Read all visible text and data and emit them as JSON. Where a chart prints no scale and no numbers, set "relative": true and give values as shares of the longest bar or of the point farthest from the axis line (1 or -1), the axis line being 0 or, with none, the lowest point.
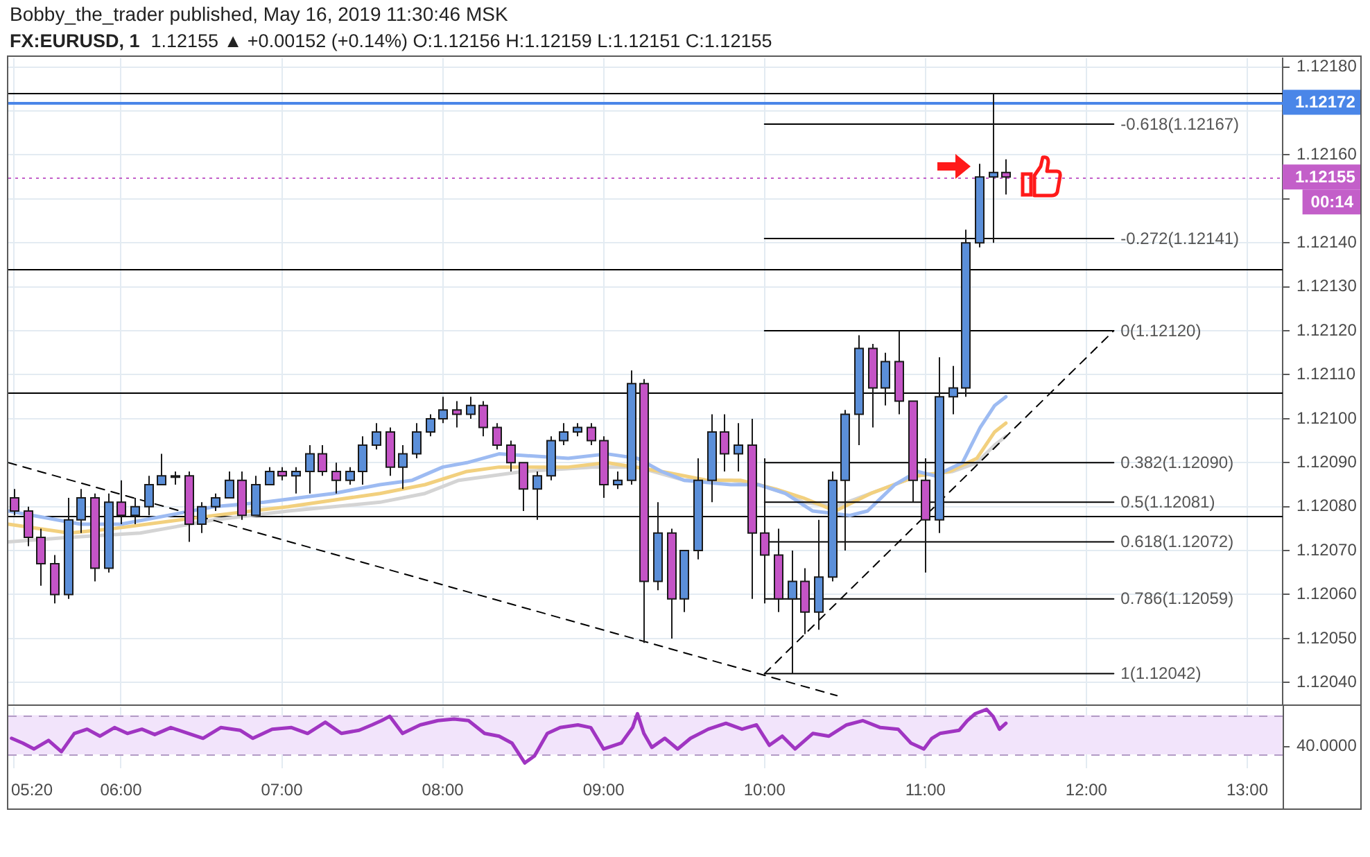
{
  "chart_data": [
    {
      "type": "candlestick",
      "title": "FX:EURUSD, 1",
      "subtitle": "1.12155 ▲ +0.00152 (+0.14%) O:1.12156 H:1.12159 L:1.12151 C:1.12155",
      "annotations": [
        "Bobby_the_trader published, May 16, 2019 11:30:46 MSK",
        "00:14"
      ],
      "x": [
        5.3333,
        5.4167,
        5.5,
        5.5833,
        5.6667,
        5.75,
        5.8333,
        5.9167,
        6,
        6.0833,
        6.1667,
        6.25,
        6.3333,
        6.4167,
        6.5,
        6.5833,
        6.6667,
        6.75,
        6.8333,
        6.9167,
        7,
        7.0833,
        7.1667,
        7.25,
        7.3333,
        7.4167,
        7.5,
        7.5833,
        7.6667,
        7.75,
        7.8333,
        7.9167,
        8,
        8.0833,
        8.1667,
        8.25,
        8.3333,
        8.4167,
        8.5,
        8.5833,
        8.6667,
        8.75,
        8.8333,
        8.9167,
        9,
        9.0833,
        9.1667,
        9.25,
        9.3333,
        9.4167,
        9.5,
        9.5833,
        9.6667,
        9.75,
        9.8333,
        9.9167,
        10,
        10.0833,
        10.1667,
        10.25,
        10.3333,
        10.4167,
        10.5,
        10.5833,
        10.6667,
        10.75,
        10.8333,
        10.9167,
        11,
        11.0833,
        11.1667,
        11.25,
        11.3333,
        11.4167,
        11.5
      ],
      "ohlc": [
        [
          1.12082,
          1.12084,
          1.12078,
          1.12079
        ],
        [
          1.12079,
          1.1208,
          1.12071,
          1.12073
        ],
        [
          1.12073,
          1.12075,
          1.12062,
          1.12067
        ],
        [
          1.12067,
          1.12069,
          1.12058,
          1.1206
        ],
        [
          1.1206,
          1.12082,
          1.12059,
          1.12077
        ],
        [
          1.12077,
          1.12084,
          1.12074,
          1.12082
        ],
        [
          1.12082,
          1.12083,
          1.12063,
          1.12066
        ],
        [
          1.12066,
          1.12083,
          1.12065,
          1.12081
        ],
        [
          1.12081,
          1.12086,
          1.12076,
          1.12078
        ],
        [
          1.12078,
          1.12082,
          1.12076,
          1.1208
        ],
        [
          1.1208,
          1.12087,
          1.12078,
          1.12085
        ],
        [
          1.12085,
          1.12092,
          1.12085,
          1.12087
        ],
        [
          1.12087,
          1.12088,
          1.12085,
          1.12087
        ],
        [
          1.12087,
          1.12088,
          1.12072,
          1.12076
        ],
        [
          1.12076,
          1.12081,
          1.12074,
          1.1208
        ],
        [
          1.1208,
          1.12083,
          1.12079,
          1.12082
        ],
        [
          1.12082,
          1.12088,
          1.12082,
          1.12086
        ],
        [
          1.12086,
          1.12088,
          1.12077,
          1.12078
        ],
        [
          1.12078,
          1.12087,
          1.12078,
          1.12085
        ],
        [
          1.12085,
          1.12089,
          1.12085,
          1.12088
        ],
        [
          1.12088,
          1.12089,
          1.12086,
          1.12087
        ],
        [
          1.12087,
          1.12089,
          1.12083,
          1.12088
        ],
        [
          1.12088,
          1.12094,
          1.12083,
          1.12092
        ],
        [
          1.12092,
          1.12094,
          1.12087,
          1.12088
        ],
        [
          1.12088,
          1.1209,
          1.12083,
          1.12086
        ],
        [
          1.12086,
          1.12089,
          1.12085,
          1.12088
        ],
        [
          1.12088,
          1.12096,
          1.12085,
          1.12094
        ],
        [
          1.12094,
          1.12099,
          1.12093,
          1.12097
        ],
        [
          1.12097,
          1.12098,
          1.12087,
          1.12089
        ],
        [
          1.12089,
          1.12094,
          1.12084,
          1.12092
        ],
        [
          1.12092,
          1.12099,
          1.12091,
          1.12097
        ],
        [
          1.12097,
          1.12101,
          1.12096,
          1.121
        ],
        [
          1.121,
          1.12105,
          1.12099,
          1.12102
        ],
        [
          1.12102,
          1.12104,
          1.12098,
          1.12101
        ],
        [
          1.12101,
          1.12105,
          1.121,
          1.12103
        ],
        [
          1.12103,
          1.12104,
          1.12096,
          1.12098
        ],
        [
          1.12098,
          1.12099,
          1.12093,
          1.12094
        ],
        [
          1.12094,
          1.12095,
          1.12088,
          1.1209
        ],
        [
          1.1209,
          1.1209,
          1.12079,
          1.12084
        ],
        [
          1.12084,
          1.12088,
          1.12077,
          1.12087
        ],
        [
          1.12087,
          1.12096,
          1.12086,
          1.12095
        ],
        [
          1.12095,
          1.12099,
          1.12094,
          1.12097
        ],
        [
          1.12097,
          1.12099,
          1.12096,
          1.12098
        ],
        [
          1.12098,
          1.12099,
          1.12094,
          1.12095
        ],
        [
          1.12095,
          1.12096,
          1.12082,
          1.12085
        ],
        [
          1.12085,
          1.12088,
          1.12084,
          1.12086
        ],
        [
          1.12086,
          1.12111,
          1.12085,
          1.12108
        ],
        [
          1.12108,
          1.12109,
          1.12049,
          1.12063
        ],
        [
          1.12063,
          1.12081,
          1.12061,
          1.12074
        ],
        [
          1.12074,
          1.12075,
          1.1205,
          1.12059
        ],
        [
          1.12059,
          1.1207,
          1.12056,
          1.1207
        ],
        [
          1.1207,
          1.12091,
          1.12068,
          1.12086
        ],
        [
          1.12086,
          1.12101,
          1.12081,
          1.12097
        ],
        [
          1.12097,
          1.12101,
          1.12088,
          1.12092
        ],
        [
          1.12092,
          1.12099,
          1.12088,
          1.12094
        ],
        [
          1.12094,
          1.121,
          1.12059,
          1.12074
        ],
        [
          1.12074,
          1.12091,
          1.12058,
          1.12069
        ],
        [
          1.12069,
          1.12075,
          1.12056,
          1.12059
        ],
        [
          1.12059,
          1.1207,
          1.12042,
          1.12063
        ],
        [
          1.12063,
          1.12066,
          1.12051,
          1.12056
        ],
        [
          1.12056,
          1.12077,
          1.12052,
          1.12064
        ],
        [
          1.12064,
          1.12088,
          1.12063,
          1.12086
        ],
        [
          1.12086,
          1.12102,
          1.1207,
          1.12101
        ],
        [
          1.12101,
          1.12119,
          1.12094,
          1.12116
        ],
        [
          1.12116,
          1.12117,
          1.12098,
          1.12107
        ],
        [
          1.12107,
          1.12115,
          1.12103,
          1.12113
        ],
        [
          1.12113,
          1.1212,
          1.12101,
          1.12104
        ],
        [
          1.12104,
          1.12104,
          1.12081,
          1.12086
        ],
        [
          1.12086,
          1.12091,
          1.12065,
          1.12077
        ],
        [
          1.12077,
          1.12114,
          1.12074,
          1.12105
        ],
        [
          1.12105,
          1.12112,
          1.12101,
          1.12107
        ],
        [
          1.12107,
          1.12143,
          1.12105,
          1.1214
        ],
        [
          1.1214,
          1.12158,
          1.12139,
          1.12155
        ],
        [
          1.12155,
          1.12174,
          1.1214,
          1.12156
        ],
        [
          1.12156,
          1.12159,
          1.12151,
          1.12155
        ]
      ],
      "colors": [
        "#c454c6",
        "#c454c6",
        "#c454c6",
        "#c454c6",
        "#5b8fd9",
        "#5b8fd9",
        "#c454c6",
        "#5b8fd9",
        "#c454c6",
        "#5b8fd9",
        "#5b8fd9",
        "#5b8fd9",
        "#5b8fd9",
        "#c454c6",
        "#5b8fd9",
        "#5b8fd9",
        "#5b8fd9",
        "#c454c6",
        "#5b8fd9",
        "#5b8fd9",
        "#c454c6",
        "#5b8fd9",
        "#5b8fd9",
        "#c454c6",
        "#c454c6",
        "#5b8fd9",
        "#5b8fd9",
        "#5b8fd9",
        "#c454c6",
        "#5b8fd9",
        "#5b8fd9",
        "#5b8fd9",
        "#5b8fd9",
        "#c454c6",
        "#5b8fd9",
        "#c454c6",
        "#c454c6",
        "#c454c6",
        "#c454c6",
        "#5b8fd9",
        "#5b8fd9",
        "#5b8fd9",
        "#5b8fd9",
        "#c454c6",
        "#c454c6",
        "#5b8fd9",
        "#5b8fd9",
        "#c454c6",
        "#5b8fd9",
        "#c454c6",
        "#5b8fd9",
        "#5b8fd9",
        "#5b8fd9",
        "#c454c6",
        "#5b8fd9",
        "#c454c6",
        "#c454c6",
        "#c454c6",
        "#5b8fd9",
        "#c454c6",
        "#5b8fd9",
        "#5b8fd9",
        "#5b8fd9",
        "#5b8fd9",
        "#c454c6",
        "#5b8fd9",
        "#c454c6",
        "#c454c6",
        "#c454c6",
        "#5b8fd9",
        "#5b8fd9",
        "#5b8fd9",
        "#5b8fd9",
        "#5b8fd9",
        "#c454c6"
      ],
      "series": [
        {
          "type": "line",
          "color": "#d4d4d4",
          "x": [
            5.3,
            5.68,
            6.12,
            6.58,
            7.04,
            7.61,
            7.89,
            8.1,
            8.5,
            8.93,
            9.21,
            9.5,
            9.79,
            9.96,
            10.13,
            10.24,
            10.44,
            10.66,
            10.95,
            11.17,
            11.32,
            11.43,
            11.5
          ],
          "values": [
            1.12072,
            1.12073,
            1.12074,
            1.12077,
            1.12079,
            1.12081,
            1.12083,
            1.12086,
            1.12088,
            1.12089,
            1.12089,
            1.12086,
            1.12086,
            1.12085,
            1.12083,
            1.12081,
            1.1208,
            1.12083,
            1.12087,
            1.12088,
            1.1209,
            1.12094,
            1.12096
          ]
        },
        {
          "type": "line",
          "color": "#f2d07e",
          "x": [
            5.3,
            5.68,
            5.95,
            6.58,
            7.04,
            7.61,
            7.89,
            8.15,
            8.35,
            8.78,
            9.02,
            9.36,
            9.64,
            9.85,
            9.96,
            10.07,
            10.24,
            10.44,
            10.66,
            10.95,
            11.15,
            11.32,
            11.43,
            11.5
          ],
          "values": [
            1.12076,
            1.12074,
            1.12075,
            1.12078,
            1.1208,
            1.12083,
            1.12085,
            1.12088,
            1.12089,
            1.12089,
            1.1209,
            1.12088,
            1.12086,
            1.12086,
            1.12085,
            1.12084,
            1.12082,
            1.12079,
            1.12083,
            1.12087,
            1.12088,
            1.12091,
            1.12097,
            1.12099
          ]
        },
        {
          "type": "line",
          "color": "#9dbbf2",
          "x": [
            5.3,
            5.75,
            6,
            6.58,
            6.89,
            7.32,
            7.61,
            7.81,
            8,
            8.15,
            8.35,
            8.78,
            9.02,
            9.21,
            9.36,
            9.5,
            9.79,
            9.96,
            10.13,
            10.3,
            10.53,
            10.64,
            10.81,
            10.95,
            11.06,
            11.23,
            11.34,
            11.43,
            11.5
          ],
          "values": [
            1.12079,
            1.12076,
            1.12076,
            1.1208,
            1.12081,
            1.12083,
            1.12085,
            1.12086,
            1.12089,
            1.1209,
            1.12092,
            1.12091,
            1.12092,
            1.12091,
            1.12088,
            1.12086,
            1.12085,
            1.12085,
            1.12083,
            1.12079,
            1.12078,
            1.12079,
            1.12085,
            1.12088,
            1.12087,
            1.1209,
            1.12098,
            1.12103,
            1.12105
          ]
        },
        {
          "type": "line",
          "name": "-0.618(1.12167)",
          "color": "#000000",
          "x": [
            10,
            12.17
          ],
          "values": [
            1.12167,
            1.12167
          ]
        },
        {
          "type": "line",
          "name": "-0.272(1.12141)",
          "color": "#000000",
          "x": [
            10,
            12.17
          ],
          "values": [
            1.12141,
            1.12141
          ]
        },
        {
          "type": "line",
          "name": "0(1.12120)",
          "color": "#000000",
          "x": [
            10,
            12.17
          ],
          "values": [
            1.1212,
            1.1212
          ]
        },
        {
          "type": "line",
          "name": "0.382(1.12090)",
          "color": "#000000",
          "x": [
            10,
            12.17
          ],
          "values": [
            1.1209,
            1.1209
          ]
        },
        {
          "type": "line",
          "name": "0.5(1.12081)",
          "color": "#000000",
          "x": [
            10,
            12.17
          ],
          "values": [
            1.12081,
            1.12081
          ]
        },
        {
          "type": "line",
          "name": "0.618(1.12072)",
          "color": "#000000",
          "x": [
            10,
            12.17
          ],
          "values": [
            1.12072,
            1.12072
          ]
        },
        {
          "type": "line",
          "name": "0.786(1.12059)",
          "color": "#000000",
          "x": [
            10,
            12.17
          ],
          "values": [
            1.12059,
            1.12059
          ]
        },
        {
          "type": "line",
          "name": "1(1.12042)",
          "color": "#000000",
          "x": [
            10,
            12.17
          ],
          "values": [
            1.12042,
            1.12042
          ]
        },
        {
          "type": "line",
          "color": "#000000",
          "line_style": "dashed",
          "x": [
            5.3,
            10.45
          ],
          "values": [
            1.1209,
            1.12037
          ]
        },
        {
          "type": "line",
          "color": "#000000",
          "line_style": "dashed",
          "x": [
            10,
            12.17
          ],
          "values": [
            1.12042,
            1.1212
          ]
        }
      ],
      "xlim": [
        5.3,
        13.22
      ],
      "xticks": [
        5.3333,
        6,
        7,
        8,
        9,
        10,
        11,
        12,
        13
      ],
      "ylim": [
        1.12035,
        1.12182
      ],
      "yticks": [
        {
          "value": 1.1204,
          "label": "1.12040"
        },
        {
          "value": 1.1205,
          "label": "1.12050"
        },
        {
          "value": 1.1206,
          "label": "1.12060"
        },
        {
          "value": 1.1207,
          "label": "1.12070"
        },
        {
          "value": 1.1208,
          "label": "1.12080"
        },
        {
          "value": 1.1209,
          "label": "1.12090"
        },
        {
          "value": 1.121,
          "label": "1.12100"
        },
        {
          "value": 1.1211,
          "label": "1.12110"
        },
        {
          "value": 1.1212,
          "label": "1.12120"
        },
        {
          "value": 1.1213,
          "label": "1.12130"
        },
        {
          "value": 1.1214,
          "label": "1.12140"
        },
        {
          "value": 1.1215,
          "label": null
        },
        {
          "value": 1.1216,
          "label": "1.12160"
        },
        {
          "value": 1.1217,
          "label": null
        },
        {
          "value": 1.1218,
          "label": "1.12180"
        }
      ],
      "ref_lines": [
        {
          "axis": "y",
          "value": 1.12174,
          "color": "#000000"
        },
        {
          "axis": "y",
          "value": 1.12172,
          "label": "1.12172",
          "color": "#4a86e8"
        },
        {
          "axis": "y",
          "value": 1.12155,
          "label": "1.12155",
          "color": "#c35fc9",
          "line_style": "dotted"
        },
        {
          "axis": "y",
          "value": 1.12134,
          "color": "#000000"
        },
        {
          "axis": "y",
          "value": 1.12106,
          "color": "#000000"
        },
        {
          "axis": "y",
          "value": 1.12078,
          "color": "#000000"
        }
      ],
      "grid": true,
      "tick_labels": "y"
    },
    {
      "type": "line",
      "relative": true,
      "x": [
        5.32,
        5.39,
        5.46,
        5.55,
        5.63,
        5.71,
        5.79,
        5.87,
        5.96,
        6.04,
        6.13,
        6.21,
        6.31,
        6.42,
        6.51,
        6.62,
        6.74,
        6.82,
        6.94,
        7.06,
        7.16,
        7.27,
        7.37,
        7.48,
        7.56,
        7.62,
        7.67,
        7.75,
        7.86,
        7.97,
        8.07,
        8.16,
        8.26,
        8.35,
        8.43,
        8.51,
        8.57,
        8.65,
        8.73,
        8.84,
        8.92,
        9,
        9.11,
        9.18,
        9.21,
        9.25,
        9.3,
        9.38,
        9.46,
        9.54,
        9.65,
        9.76,
        9.86,
        9.95,
        10.03,
        10.11,
        10.19,
        10.3,
        10.4,
        10.51,
        10.61,
        10.72,
        10.83,
        10.91,
        10.99,
        11.04,
        11.09,
        11.21,
        11.26,
        11.31,
        11.38,
        11.42,
        11.46,
        11.5
      ],
      "values": [
        0.46,
        0.37,
        0.26,
        0.42,
        0.21,
        0.55,
        0.63,
        0.5,
        0.66,
        0.55,
        0.63,
        0.53,
        0.66,
        0.55,
        0.46,
        0.66,
        0.61,
        0.46,
        0.63,
        0.66,
        0.55,
        0.76,
        0.55,
        0.61,
        0.71,
        0.79,
        0.87,
        0.55,
        0.71,
        0.79,
        0.82,
        0.79,
        0.55,
        0.5,
        0.37,
        0,
        0.13,
        0.55,
        0.66,
        0.71,
        0.66,
        0.26,
        0.37,
        0.66,
        0.92,
        0.55,
        0.29,
        0.46,
        0.26,
        0.46,
        0.63,
        0.74,
        0.63,
        0.71,
        0.33,
        0.5,
        0.26,
        0.55,
        0.5,
        0.71,
        0.79,
        0.66,
        0.63,
        0.37,
        0.26,
        0.46,
        0.55,
        0.61,
        0.79,
        0.92,
        1,
        0.87,
        0.63,
        0.74
      ],
      "color": "#a035c2",
      "bands": [
        {
          "axis": "y",
          "from": 0.16,
          "to": 0.89,
          "color": "#f2e4fb"
        }
      ],
      "ref_lines": [
        {
          "axis": "y",
          "value": 0.89,
          "color": "#b39bc5",
          "line_style": "dashed"
        },
        {
          "axis": "y",
          "value": 0.16,
          "color": "#b39bc5",
          "line_style": "dashed"
        }
      ],
      "annotations": [
        "40.0000"
      ],
      "xlim": [
        5.3,
        13.22
      ],
      "xticks": [
        {
          "value": 5.3333,
          "label": "05:20"
        },
        {
          "value": 6,
          "label": "06:00"
        },
        {
          "value": 7,
          "label": "07:00"
        },
        {
          "value": 8,
          "label": "08:00"
        },
        {
          "value": 9,
          "label": "09:00"
        },
        {
          "value": 10,
          "label": "10:00"
        },
        {
          "value": 11,
          "label": "11:00"
        },
        {
          "value": 12,
          "label": "12:00"
        },
        {
          "value": 13,
          "label": "13:00"
        }
      ],
      "grid": "x",
      "tick_labels": "x"
    }
  ]
}
